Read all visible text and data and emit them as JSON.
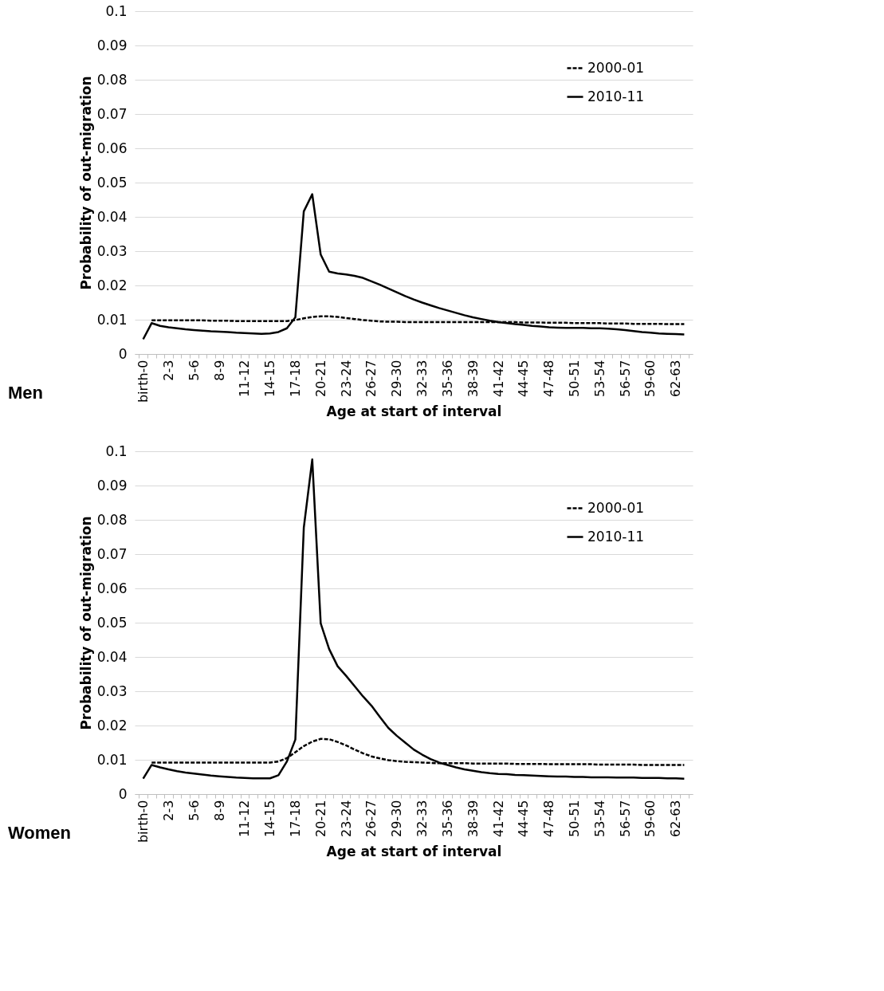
{
  "chart_data": [
    {
      "type": "line",
      "title": "Men",
      "xlabel": "Age at start of interval",
      "ylabel": "Probability of out-migration",
      "categories": [
        "birth-0",
        null,
        null,
        "2-3",
        null,
        null,
        "5-6",
        null,
        null,
        "8-9",
        null,
        null,
        "11-12",
        null,
        null,
        "14-15",
        null,
        null,
        "17-18",
        null,
        null,
        "20-21",
        null,
        null,
        "23-24",
        null,
        null,
        "26-27",
        null,
        null,
        "29-30",
        null,
        null,
        "32-33",
        null,
        null,
        "35-36",
        null,
        null,
        "38-39",
        null,
        null,
        "41-42",
        null,
        null,
        "44-45",
        null,
        null,
        "47-48",
        null,
        null,
        "50-51",
        null,
        null,
        "53-54",
        null,
        null,
        "56-57",
        null,
        null,
        "59-60",
        null,
        null,
        "62-63",
        null
      ],
      "series": [
        {
          "name": "2000-01",
          "color": "#000000",
          "line_style": "dashed",
          "values": [
            null,
            0.0098,
            0.0098,
            0.0098,
            0.0098,
            0.0098,
            0.0098,
            0.0098,
            0.0097,
            0.0097,
            0.0097,
            0.0096,
            0.0096,
            0.0096,
            0.0096,
            0.0096,
            0.0096,
            0.0096,
            0.0099,
            0.0104,
            0.0108,
            0.011,
            0.011,
            0.0108,
            0.0105,
            0.0102,
            0.0099,
            0.0097,
            0.0095,
            0.0094,
            0.0094,
            0.0093,
            0.0093,
            0.0093,
            0.0093,
            0.0093,
            0.0093,
            0.0093,
            0.0093,
            0.0093,
            0.0093,
            0.0093,
            0.0093,
            0.0093,
            0.0093,
            0.0092,
            0.0092,
            0.0092,
            0.0091,
            0.0091,
            0.0091,
            0.009,
            0.009,
            0.009,
            0.009,
            0.0089,
            0.0089,
            0.0089,
            0.0088,
            0.0088,
            0.0088,
            0.0088,
            0.0087,
            0.0087,
            0.0087
          ]
        },
        {
          "name": "2010-11",
          "color": "#000000",
          "line_style": "solid",
          "values": [
            0.0043,
            0.009,
            0.0082,
            0.0078,
            0.0075,
            0.0072,
            0.007,
            0.0068,
            0.0066,
            0.0065,
            0.0064,
            0.0062,
            0.0061,
            0.006,
            0.0059,
            0.006,
            0.0064,
            0.0075,
            0.0107,
            0.0416,
            0.0466,
            0.029,
            0.024,
            0.0235,
            0.0232,
            0.0228,
            0.0222,
            0.0212,
            0.0202,
            0.0191,
            0.018,
            0.0169,
            0.0159,
            0.015,
            0.0142,
            0.0134,
            0.0127,
            0.012,
            0.0113,
            0.0107,
            0.0102,
            0.0097,
            0.0093,
            0.009,
            0.0087,
            0.0085,
            0.0082,
            0.008,
            0.0078,
            0.0077,
            0.0076,
            0.0076,
            0.0076,
            0.0075,
            0.0075,
            0.0074,
            0.0072,
            0.007,
            0.0067,
            0.0064,
            0.0062,
            0.006,
            0.0059,
            0.0058,
            0.0057
          ]
        }
      ],
      "ylim": [
        0,
        0.1
      ],
      "yticks": [
        0,
        0.01,
        0.02,
        0.03,
        0.04,
        0.05,
        0.06,
        0.07,
        0.08,
        0.09,
        0.1
      ],
      "grid": "y",
      "legend": "top right",
      "marker": "none"
    },
    {
      "type": "line",
      "title": "Women",
      "xlabel": "Age at start of interval",
      "ylabel": "Probability of out-migration",
      "categories": [
        "birth-0",
        null,
        null,
        "2-3",
        null,
        null,
        "5-6",
        null,
        null,
        "8-9",
        null,
        null,
        "11-12",
        null,
        null,
        "14-15",
        null,
        null,
        "17-18",
        null,
        null,
        "20-21",
        null,
        null,
        "23-24",
        null,
        null,
        "26-27",
        null,
        null,
        "29-30",
        null,
        null,
        "32-33",
        null,
        null,
        "35-36",
        null,
        null,
        "38-39",
        null,
        null,
        "41-42",
        null,
        null,
        "44-45",
        null,
        null,
        "47-48",
        null,
        null,
        "50-51",
        null,
        null,
        "53-54",
        null,
        null,
        "56-57",
        null,
        null,
        "59-60",
        null,
        null,
        "62-63",
        null
      ],
      "series": [
        {
          "name": "2000-01",
          "color": "#000000",
          "line_style": "dashed",
          "values": [
            null,
            0.0092,
            0.0092,
            0.0092,
            0.0092,
            0.0092,
            0.0092,
            0.0092,
            0.0092,
            0.0092,
            0.0092,
            0.0092,
            0.0092,
            0.0092,
            0.0092,
            0.0092,
            0.0095,
            0.0105,
            0.0122,
            0.014,
            0.0153,
            0.0161,
            0.016,
            0.0152,
            0.0142,
            0.013,
            0.0119,
            0.011,
            0.0104,
            0.0099,
            0.0096,
            0.0094,
            0.0093,
            0.0092,
            0.0091,
            0.009,
            0.009,
            0.009,
            0.009,
            0.0089,
            0.0089,
            0.0089,
            0.0089,
            0.0089,
            0.0088,
            0.0088,
            0.0088,
            0.0088,
            0.0087,
            0.0087,
            0.0087,
            0.0087,
            0.0087,
            0.0087,
            0.0086,
            0.0086,
            0.0086,
            0.0086,
            0.0086,
            0.0085,
            0.0085,
            0.0085,
            0.0085,
            0.0085,
            0.0085
          ]
        },
        {
          "name": "2010-11",
          "color": "#000000",
          "line_style": "solid",
          "values": [
            0.0045,
            0.0085,
            0.0078,
            0.0072,
            0.0067,
            0.0063,
            0.006,
            0.0057,
            0.0054,
            0.0052,
            0.005,
            0.0048,
            0.0047,
            0.0046,
            0.0046,
            0.0046,
            0.0055,
            0.0095,
            0.0159,
            0.0777,
            0.0976,
            0.0498,
            0.0423,
            0.0373,
            0.0345,
            0.0315,
            0.0285,
            0.0258,
            0.0225,
            0.0193,
            0.017,
            0.015,
            0.013,
            0.0115,
            0.0102,
            0.0092,
            0.0085,
            0.0078,
            0.0072,
            0.0068,
            0.0064,
            0.0061,
            0.0059,
            0.0058,
            0.0056,
            0.0055,
            0.0054,
            0.0053,
            0.0052,
            0.0051,
            0.0051,
            0.005,
            0.005,
            0.0049,
            0.0049,
            0.0049,
            0.0048,
            0.0048,
            0.0048,
            0.0047,
            0.0047,
            0.0047,
            0.0046,
            0.0046,
            0.0045
          ]
        }
      ],
      "ylim": [
        0,
        0.1
      ],
      "yticks": [
        0,
        0.01,
        0.02,
        0.03,
        0.04,
        0.05,
        0.06,
        0.07,
        0.08,
        0.09,
        0.1
      ],
      "grid": "y",
      "legend": "top right",
      "marker": "none"
    }
  ]
}
